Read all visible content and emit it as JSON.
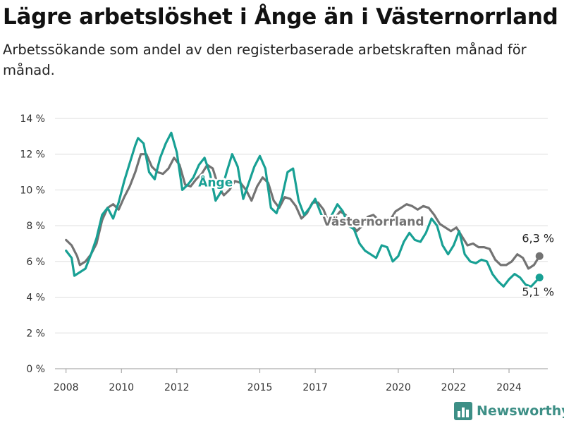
{
  "header": {
    "title": "Lägre arbetslöshet i Ånge än i Västernorrland",
    "subtitle": "Arbetssökande som andel av den registerbaserade arbetskraften månad för månad."
  },
  "brand": {
    "name": "Newsworthy",
    "icon": "bar-chart-logo-icon",
    "color": "#3d8f86"
  },
  "chart_data": {
    "type": "line",
    "title": "Lägre arbetslöshet i Ånge än i Västernorrland",
    "subtitle": "Arbetssökande som andel av den registerbaserade arbetskraften månad för månad.",
    "xlabel": "",
    "ylabel": "",
    "ylim": [
      0,
      14
    ],
    "xlim": [
      2007.6,
      2025.4
    ],
    "y_ticks": [
      0,
      2,
      4,
      6,
      8,
      10,
      12,
      14
    ],
    "y_tick_labels": [
      "0 %",
      "2 %",
      "4 %",
      "6 %",
      "8 %",
      "10 %",
      "12 %",
      "14 %"
    ],
    "x_ticks": [
      2008,
      2010,
      2012,
      2015,
      2017,
      2020,
      2022,
      2024
    ],
    "x_tick_labels": [
      "2008",
      "2010",
      "2012",
      "2015",
      "2017",
      "2020",
      "2022",
      "2024"
    ],
    "grid": "horizontal",
    "legend": "inline labels",
    "series": [
      {
        "name": "Västernorrland",
        "color": "#737373",
        "end_label": "6,3 %",
        "points": [
          [
            2008.0,
            7.2
          ],
          [
            2008.2,
            6.9
          ],
          [
            2008.4,
            6.3
          ],
          [
            2008.5,
            5.8
          ],
          [
            2008.7,
            6.0
          ],
          [
            2008.9,
            6.4
          ],
          [
            2009.1,
            7.0
          ],
          [
            2009.3,
            8.3
          ],
          [
            2009.5,
            9.0
          ],
          [
            2009.7,
            9.2
          ],
          [
            2009.9,
            8.9
          ],
          [
            2010.1,
            9.6
          ],
          [
            2010.3,
            10.2
          ],
          [
            2010.5,
            11.0
          ],
          [
            2010.7,
            12.0
          ],
          [
            2010.9,
            12.0
          ],
          [
            2011.1,
            11.3
          ],
          [
            2011.3,
            11.0
          ],
          [
            2011.5,
            10.9
          ],
          [
            2011.7,
            11.2
          ],
          [
            2011.9,
            11.8
          ],
          [
            2012.1,
            11.4
          ],
          [
            2012.3,
            10.3
          ],
          [
            2012.5,
            10.2
          ],
          [
            2012.7,
            10.6
          ],
          [
            2012.9,
            10.9
          ],
          [
            2013.1,
            11.4
          ],
          [
            2013.3,
            11.2
          ],
          [
            2013.5,
            10.2
          ],
          [
            2013.7,
            9.7
          ],
          [
            2013.9,
            10.0
          ],
          [
            2014.1,
            10.5
          ],
          [
            2014.3,
            10.4
          ],
          [
            2014.5,
            10.0
          ],
          [
            2014.7,
            9.4
          ],
          [
            2014.9,
            10.2
          ],
          [
            2015.1,
            10.7
          ],
          [
            2015.3,
            10.4
          ],
          [
            2015.5,
            9.4
          ],
          [
            2015.7,
            9.0
          ],
          [
            2015.9,
            9.6
          ],
          [
            2016.1,
            9.5
          ],
          [
            2016.3,
            9.1
          ],
          [
            2016.5,
            8.4
          ],
          [
            2016.7,
            8.7
          ],
          [
            2016.9,
            9.3
          ],
          [
            2017.1,
            9.3
          ],
          [
            2017.3,
            8.9
          ],
          [
            2017.5,
            8.1
          ],
          [
            2017.7,
            8.4
          ],
          [
            2017.9,
            8.8
          ],
          [
            2018.1,
            8.6
          ],
          [
            2018.3,
            8.1
          ],
          [
            2018.5,
            7.7
          ],
          [
            2018.7,
            8.0
          ],
          [
            2018.9,
            8.5
          ],
          [
            2019.1,
            8.6
          ],
          [
            2019.3,
            8.3
          ],
          [
            2019.5,
            8.0
          ],
          [
            2019.7,
            8.3
          ],
          [
            2019.9,
            8.8
          ],
          [
            2020.1,
            9.0
          ],
          [
            2020.3,
            9.2
          ],
          [
            2020.5,
            9.1
          ],
          [
            2020.7,
            8.9
          ],
          [
            2020.9,
            9.1
          ],
          [
            2021.1,
            9.0
          ],
          [
            2021.3,
            8.6
          ],
          [
            2021.5,
            8.1
          ],
          [
            2021.7,
            7.9
          ],
          [
            2021.9,
            7.7
          ],
          [
            2022.1,
            7.9
          ],
          [
            2022.3,
            7.4
          ],
          [
            2022.5,
            6.9
          ],
          [
            2022.7,
            7.0
          ],
          [
            2022.9,
            6.8
          ],
          [
            2023.1,
            6.8
          ],
          [
            2023.3,
            6.7
          ],
          [
            2023.5,
            6.1
          ],
          [
            2023.7,
            5.8
          ],
          [
            2023.9,
            5.8
          ],
          [
            2024.1,
            6.0
          ],
          [
            2024.3,
            6.4
          ],
          [
            2024.5,
            6.2
          ],
          [
            2024.7,
            5.6
          ],
          [
            2024.9,
            5.8
          ],
          [
            2025.1,
            6.3
          ]
        ]
      },
      {
        "name": "Ånge",
        "color": "#18a094",
        "end_label": "5,1 %",
        "points": [
          [
            2008.0,
            6.6
          ],
          [
            2008.2,
            6.2
          ],
          [
            2008.3,
            5.2
          ],
          [
            2008.5,
            5.4
          ],
          [
            2008.7,
            5.6
          ],
          [
            2008.9,
            6.4
          ],
          [
            2009.1,
            7.3
          ],
          [
            2009.3,
            8.6
          ],
          [
            2009.5,
            9.0
          ],
          [
            2009.7,
            8.4
          ],
          [
            2009.9,
            9.3
          ],
          [
            2010.1,
            10.5
          ],
          [
            2010.3,
            11.5
          ],
          [
            2010.5,
            12.5
          ],
          [
            2010.6,
            12.9
          ],
          [
            2010.8,
            12.6
          ],
          [
            2011.0,
            11.0
          ],
          [
            2011.2,
            10.6
          ],
          [
            2011.4,
            11.8
          ],
          [
            2011.6,
            12.6
          ],
          [
            2011.8,
            13.2
          ],
          [
            2012.0,
            12.1
          ],
          [
            2012.2,
            10.0
          ],
          [
            2012.4,
            10.3
          ],
          [
            2012.6,
            10.7
          ],
          [
            2012.8,
            11.4
          ],
          [
            2013.0,
            11.8
          ],
          [
            2013.2,
            10.9
          ],
          [
            2013.4,
            9.4
          ],
          [
            2013.6,
            9.9
          ],
          [
            2013.8,
            11.0
          ],
          [
            2014.0,
            12.0
          ],
          [
            2014.2,
            11.3
          ],
          [
            2014.4,
            9.5
          ],
          [
            2014.6,
            10.4
          ],
          [
            2014.8,
            11.3
          ],
          [
            2015.0,
            11.9
          ],
          [
            2015.2,
            11.2
          ],
          [
            2015.4,
            9.0
          ],
          [
            2015.6,
            8.7
          ],
          [
            2015.8,
            9.6
          ],
          [
            2016.0,
            11.0
          ],
          [
            2016.2,
            11.2
          ],
          [
            2016.4,
            9.4
          ],
          [
            2016.6,
            8.6
          ],
          [
            2016.8,
            9.0
          ],
          [
            2017.0,
            9.5
          ],
          [
            2017.2,
            8.7
          ],
          [
            2017.4,
            8.0
          ],
          [
            2017.6,
            8.6
          ],
          [
            2017.8,
            9.2
          ],
          [
            2018.0,
            8.8
          ],
          [
            2018.2,
            8.0
          ],
          [
            2018.4,
            7.8
          ],
          [
            2018.6,
            7.0
          ],
          [
            2018.8,
            6.6
          ],
          [
            2019.0,
            6.4
          ],
          [
            2019.2,
            6.2
          ],
          [
            2019.4,
            6.9
          ],
          [
            2019.6,
            6.8
          ],
          [
            2019.8,
            6.0
          ],
          [
            2020.0,
            6.3
          ],
          [
            2020.2,
            7.1
          ],
          [
            2020.4,
            7.6
          ],
          [
            2020.6,
            7.2
          ],
          [
            2020.8,
            7.1
          ],
          [
            2021.0,
            7.6
          ],
          [
            2021.2,
            8.4
          ],
          [
            2021.4,
            8.0
          ],
          [
            2021.6,
            6.9
          ],
          [
            2021.8,
            6.4
          ],
          [
            2022.0,
            6.9
          ],
          [
            2022.2,
            7.7
          ],
          [
            2022.4,
            6.4
          ],
          [
            2022.6,
            6.0
          ],
          [
            2022.8,
            5.9
          ],
          [
            2023.0,
            6.1
          ],
          [
            2023.2,
            6.0
          ],
          [
            2023.4,
            5.3
          ],
          [
            2023.6,
            4.9
          ],
          [
            2023.8,
            4.6
          ],
          [
            2024.0,
            5.0
          ],
          [
            2024.2,
            5.3
          ],
          [
            2024.4,
            5.1
          ],
          [
            2024.6,
            4.7
          ],
          [
            2024.8,
            4.6
          ],
          [
            2025.1,
            5.1
          ]
        ]
      }
    ],
    "annotations": [
      {
        "text": "Ånge",
        "series": "Ånge",
        "x": 2013.4,
        "y": 10.2
      },
      {
        "text": "Västernorrland",
        "series": "Västernorrland",
        "x": 2019.1,
        "y": 8.0
      }
    ]
  }
}
